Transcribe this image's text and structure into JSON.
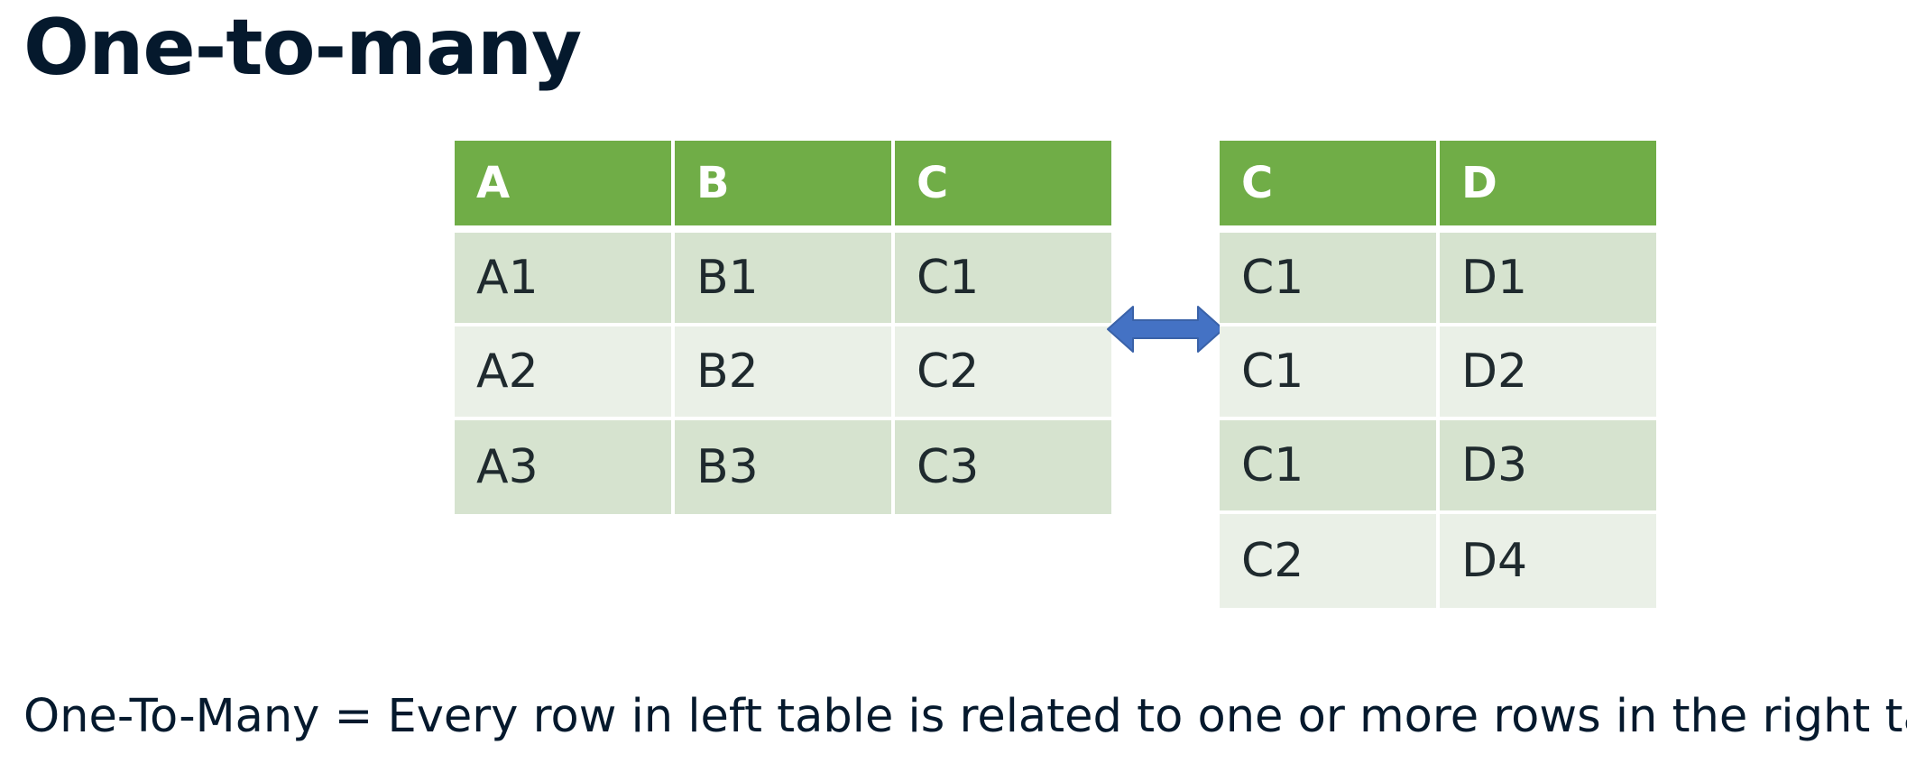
{
  "title": "One-to-many",
  "left_table": {
    "headers": [
      "A",
      "B",
      "C"
    ],
    "rows": [
      [
        "A1",
        "B1",
        "C1"
      ],
      [
        "A2",
        "B2",
        "C2"
      ],
      [
        "A3",
        "B3",
        "C3"
      ]
    ]
  },
  "right_table": {
    "headers": [
      "C",
      "D"
    ],
    "rows": [
      [
        "C1",
        "D1"
      ],
      [
        "C1",
        "D2"
      ],
      [
        "C1",
        "D3"
      ],
      [
        "C2",
        "D4"
      ]
    ]
  },
  "arrow_icon": "double-headed-arrow",
  "caption": "One-To-Many = Every row in left table is related to one or more rows in the right table",
  "colors": {
    "header": "#70ad47",
    "row_dark": "#d6e3cf",
    "row_light": "#eaf0e7",
    "arrow": "#4472c4",
    "text": "#05192d"
  }
}
